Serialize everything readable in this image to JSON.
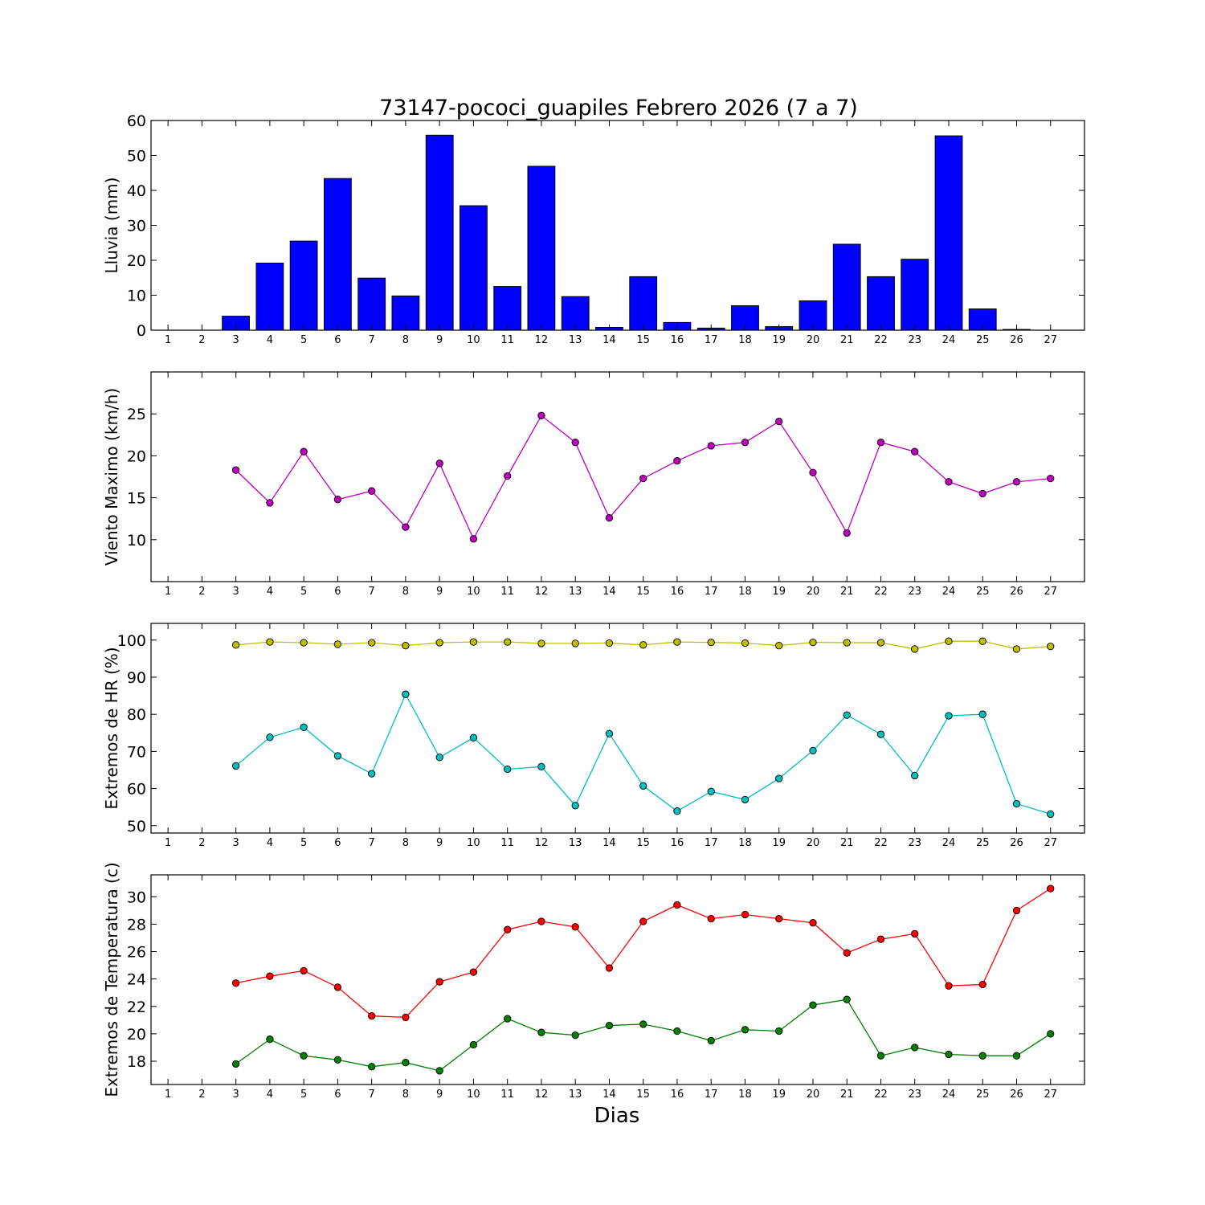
{
  "title": "73147-pococi_guapiles Febrero 2026  (7 a 7)",
  "xlabel": "Dias",
  "chart_data": [
    {
      "type": "bar",
      "ylabel": "Lluvia (mm)",
      "ylim": [
        0,
        60
      ],
      "yticks": [
        0,
        10,
        20,
        30,
        40,
        50,
        60
      ],
      "categories": [
        "1",
        "2",
        "3",
        "4",
        "5",
        "6",
        "7",
        "8",
        "9",
        "10",
        "11",
        "12",
        "13",
        "14",
        "15",
        "16",
        "17",
        "18",
        "19",
        "20",
        "21",
        "22",
        "23",
        "24",
        "25",
        "26",
        "27"
      ],
      "series": [
        {
          "color": "#0000ff",
          "values": [
            0,
            0,
            4.0,
            19.2,
            25.5,
            43.4,
            14.9,
            9.8,
            55.8,
            35.6,
            12.5,
            46.9,
            9.6,
            0.8,
            15.3,
            2.2,
            0.6,
            7.0,
            1.0,
            8.4,
            24.6,
            15.3,
            20.3,
            55.6,
            6.1,
            0.2,
            0
          ]
        }
      ]
    },
    {
      "type": "line",
      "ylabel": "Viento Maximo (km/h)",
      "ylim": [
        5,
        30
      ],
      "yticks": [
        10,
        15,
        20,
        25
      ],
      "categories": [
        "1",
        "2",
        "3",
        "4",
        "5",
        "6",
        "7",
        "8",
        "9",
        "10",
        "11",
        "12",
        "13",
        "14",
        "15",
        "16",
        "17",
        "18",
        "19",
        "20",
        "21",
        "22",
        "23",
        "24",
        "25",
        "26",
        "27"
      ],
      "series": [
        {
          "color": "#bf00bf",
          "values": [
            null,
            null,
            18.3,
            14.4,
            20.5,
            14.8,
            15.8,
            11.5,
            19.1,
            10.1,
            17.6,
            24.8,
            21.6,
            12.6,
            17.3,
            19.4,
            21.2,
            21.6,
            24.1,
            18.0,
            10.8,
            21.6,
            20.5,
            16.9,
            15.5,
            16.9,
            17.3
          ]
        }
      ]
    },
    {
      "type": "line",
      "ylabel": "Extremos de HR (%)",
      "ylim": [
        48,
        104.5
      ],
      "yticks": [
        50,
        60,
        70,
        80,
        90,
        100
      ],
      "categories": [
        "1",
        "2",
        "3",
        "4",
        "5",
        "6",
        "7",
        "8",
        "9",
        "10",
        "11",
        "12",
        "13",
        "14",
        "15",
        "16",
        "17",
        "18",
        "19",
        "20",
        "21",
        "22",
        "23",
        "24",
        "25",
        "26",
        "27"
      ],
      "series": [
        {
          "color": "#bfbf00",
          "values": [
            null,
            null,
            98.7,
            99.5,
            99.3,
            98.9,
            99.3,
            98.5,
            99.3,
            99.5,
            99.5,
            99.1,
            99.1,
            99.2,
            98.7,
            99.5,
            99.4,
            99.2,
            98.5,
            99.4,
            99.3,
            99.3,
            97.6,
            99.7,
            99.7,
            97.6,
            98.3
          ]
        },
        {
          "color": "#00bfbf",
          "values": [
            null,
            null,
            66.1,
            73.8,
            76.5,
            68.8,
            64.0,
            85.4,
            68.4,
            73.7,
            65.2,
            65.9,
            55.4,
            74.8,
            60.7,
            53.9,
            59.2,
            57.0,
            62.7,
            70.2,
            79.8,
            74.6,
            63.5,
            79.6,
            80.0,
            55.9,
            53.1
          ]
        }
      ]
    },
    {
      "type": "line",
      "ylabel": "Extremos de Temperatura (c)",
      "ylim": [
        16.3,
        31.6
      ],
      "yticks": [
        18,
        20,
        22,
        24,
        26,
        28,
        30
      ],
      "categories": [
        "1",
        "2",
        "3",
        "4",
        "5",
        "6",
        "7",
        "8",
        "9",
        "10",
        "11",
        "12",
        "13",
        "14",
        "15",
        "16",
        "17",
        "18",
        "19",
        "20",
        "21",
        "22",
        "23",
        "24",
        "25",
        "26",
        "27"
      ],
      "series": [
        {
          "color": "#ff0000",
          "values": [
            null,
            null,
            23.7,
            24.2,
            24.6,
            23.4,
            21.3,
            21.2,
            23.8,
            24.5,
            27.6,
            28.2,
            27.8,
            24.8,
            28.2,
            29.4,
            28.4,
            28.7,
            28.4,
            28.1,
            25.9,
            26.9,
            27.3,
            23.5,
            23.6,
            29.0,
            30.6
          ]
        },
        {
          "color": "#008000",
          "values": [
            null,
            null,
            17.8,
            19.6,
            18.4,
            18.1,
            17.6,
            17.9,
            17.3,
            19.2,
            21.1,
            20.1,
            19.9,
            20.6,
            20.7,
            20.2,
            19.5,
            20.3,
            20.2,
            22.1,
            22.5,
            18.4,
            19.0,
            18.5,
            18.4,
            18.4,
            20.0
          ]
        }
      ]
    }
  ]
}
